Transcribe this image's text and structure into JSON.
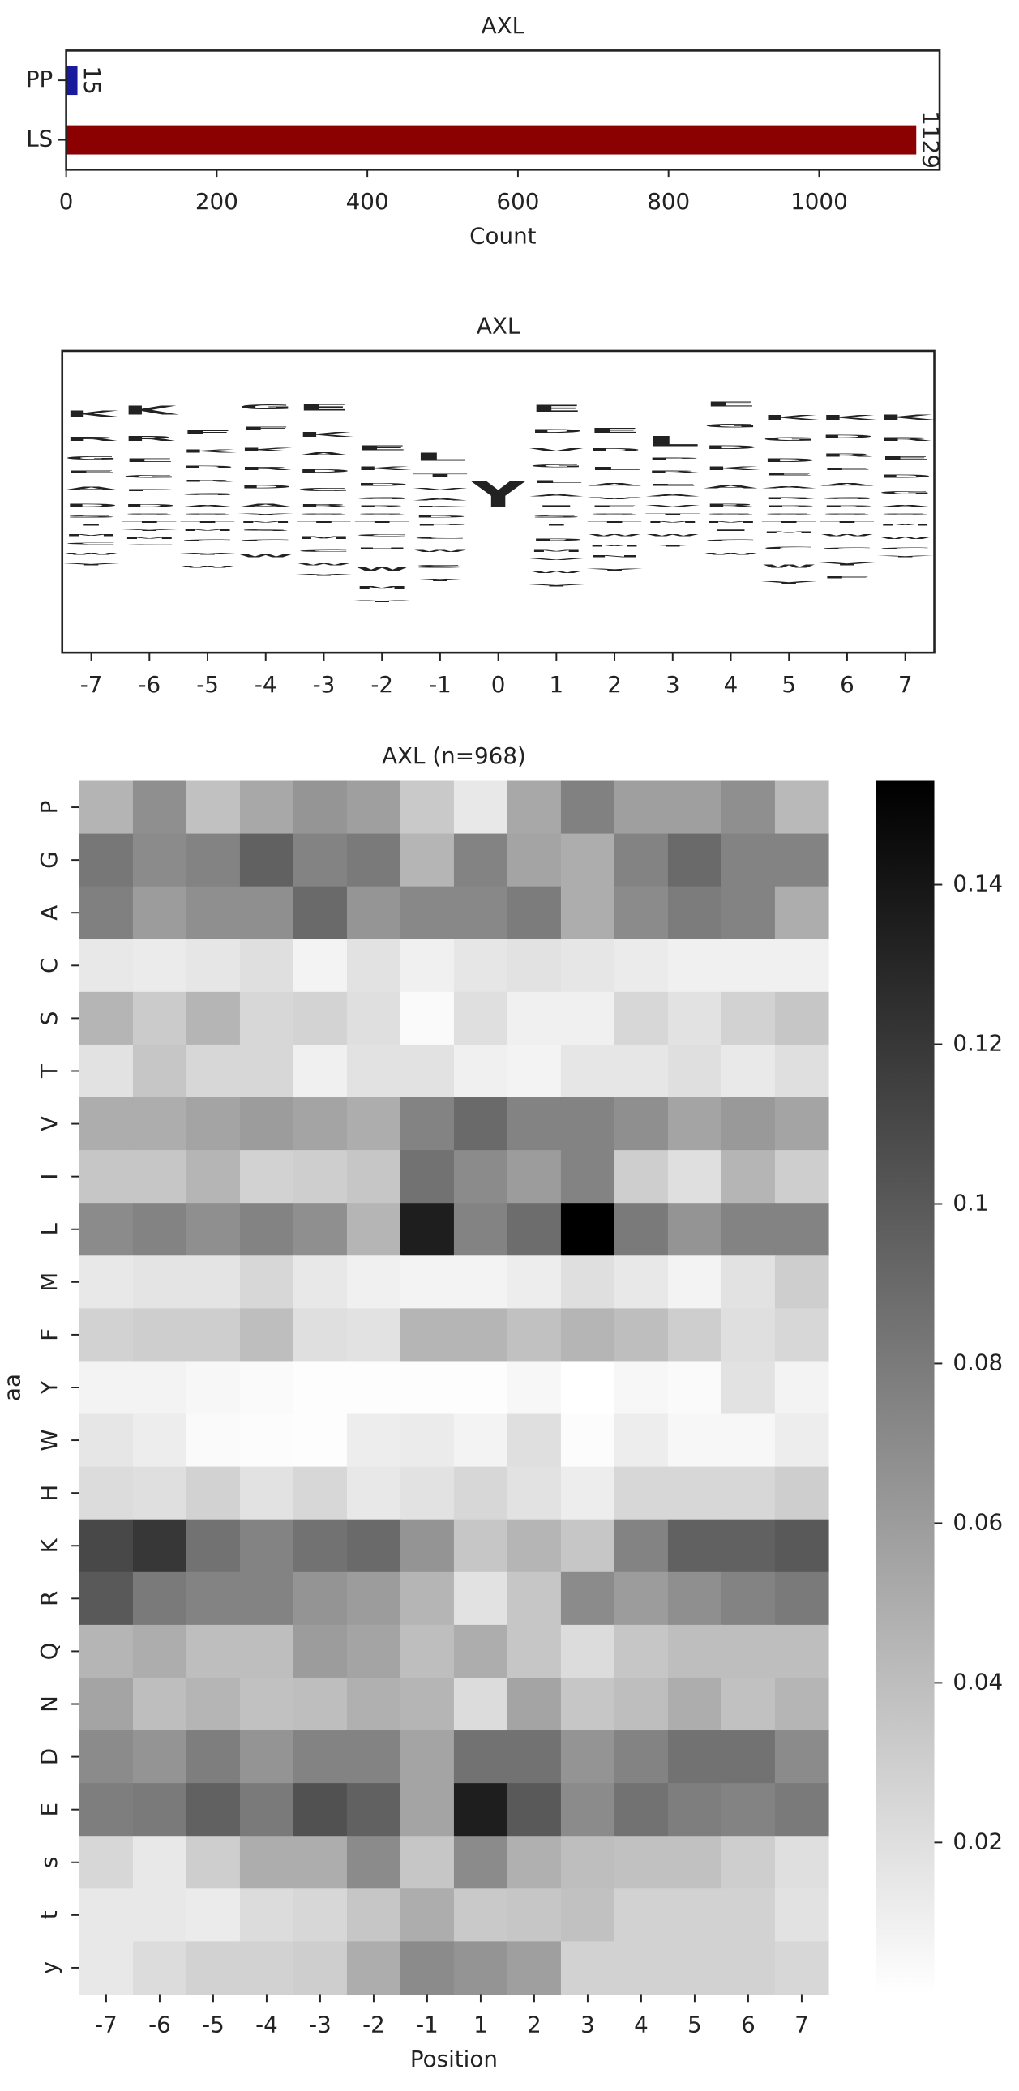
{
  "chart_data": [
    {
      "type": "barh",
      "title": "AXL",
      "categories": [
        "PP",
        "LS"
      ],
      "values": [
        15,
        1129
      ],
      "colors": [
        "#1a1a9c",
        "#8b0000"
      ],
      "xlim": [
        0,
        1160
      ],
      "xticks": [
        0,
        200,
        400,
        600,
        800,
        1000
      ],
      "xlabel": "Count"
    },
    {
      "type": "logo",
      "title": "AXL",
      "xlim": [
        -7.5,
        7.5
      ],
      "xticks": [
        -7,
        -6,
        -5,
        -4,
        -3,
        -2,
        -1,
        0,
        1,
        2,
        3,
        4,
        5,
        6,
        7
      ],
      "ylim": [
        -1.1,
        1.18
      ],
      "colors": {
        "K": "#0000ff",
        "R": "#0000ff",
        "H": "#0000ff",
        "D": "#dc143c",
        "E": "#dc143c",
        "G": "#008000",
        "A": "#008000",
        "S": "#800080",
        "T": "#800080",
        "Q": "#9932cc",
        "N": "#9932cc",
        "C": "#daa520",
        "M": "#daa520",
        "W": "#daa520",
        "L": "#daa520",
        "V": "#daa520",
        "I": "#daa520",
        "F": "#daa520",
        "P": "#000000",
        "Y": "#8b4513"
      },
      "stacks": [
        {
          "x": -7,
          "letters": [
            "K",
            "R",
            "G",
            "E",
            "A",
            "D",
            "S",
            "T",
            "M",
            "C",
            "W",
            "Y"
          ],
          "values": [
            0.28,
            0.18,
            0.14,
            0.1,
            0.13,
            0.13,
            -0.08,
            -0.06,
            -0.08,
            -0.06,
            -0.08,
            -0.08
          ]
        },
        {
          "x": -6,
          "letters": [
            "K",
            "R",
            "E",
            "G",
            "P",
            "D",
            "S",
            "T",
            "Y",
            "M",
            "C"
          ],
          "values": [
            0.4,
            0.2,
            0.16,
            0.12,
            0.1,
            0.12,
            -0.06,
            -0.06,
            -0.06,
            -0.06,
            -0.05
          ]
        },
        {
          "x": -5,
          "letters": [
            "E",
            "K",
            "D",
            "R",
            "G",
            "A",
            "S",
            "T",
            "M",
            "C",
            "Y",
            "W"
          ],
          "values": [
            0.18,
            0.14,
            0.12,
            0.1,
            0.1,
            0.09,
            -0.06,
            -0.06,
            -0.06,
            -0.08,
            -0.1,
            -0.1
          ]
        },
        {
          "x": -4,
          "letters": [
            "G",
            "E",
            "K",
            "R",
            "D",
            "A",
            "Y",
            "M",
            "S",
            "C",
            "W"
          ],
          "values": [
            0.2,
            0.16,
            0.16,
            0.14,
            0.14,
            0.14,
            -0.06,
            -0.06,
            -0.06,
            -0.08,
            -0.12
          ]
        },
        {
          "x": -3,
          "letters": [
            "E",
            "K",
            "A",
            "D",
            "G",
            "R",
            "S",
            "T",
            "M",
            "C",
            "W",
            "Y"
          ],
          "values": [
            0.3,
            0.2,
            0.14,
            0.13,
            0.14,
            0.12,
            -0.06,
            -0.06,
            -0.12,
            -0.1,
            -0.1,
            -0.08
          ]
        },
        {
          "x": -2,
          "letters": [
            "E",
            "K",
            "D",
            "G",
            "R",
            "S",
            "T",
            "C",
            "H",
            "W",
            "M",
            "Y"
          ],
          "values": [
            0.2,
            0.15,
            0.12,
            0.1,
            0.06,
            -0.06,
            -0.06,
            -0.1,
            -0.1,
            -0.16,
            -0.14,
            -0.1
          ]
        },
        {
          "x": -1,
          "letters": [
            "L",
            "T",
            "V",
            "A",
            "K",
            "D",
            "P",
            "C",
            "W",
            "S",
            "Y"
          ],
          "values": [
            0.35,
            0.12,
            0.1,
            0.08,
            0.05,
            -0.08,
            -0.06,
            -0.1,
            -0.1,
            -0.12,
            -0.1
          ]
        },
        {
          "x": 0,
          "letters": [
            "Y"
          ],
          "values": [
            1.18
          ]
        },
        {
          "x": 1,
          "letters": [
            "E",
            "D",
            "V",
            "G",
            "L",
            "A",
            "I",
            "S",
            "T",
            "P",
            "M",
            "V",
            "W",
            "Y"
          ],
          "values": [
            0.3,
            0.16,
            0.14,
            0.12,
            0.12,
            0.1,
            0.08,
            -0.08,
            -0.06,
            -0.12,
            -0.08,
            -0.06,
            -0.1,
            -0.1
          ]
        },
        {
          "x": 2,
          "letters": [
            "E",
            "D",
            "L",
            "A",
            "V",
            "F",
            "S",
            "T",
            "W",
            "M",
            "N",
            "Y"
          ],
          "values": [
            0.2,
            0.14,
            0.14,
            0.12,
            0.1,
            0.06,
            -0.06,
            -0.06,
            -0.1,
            -0.08,
            -0.08,
            -0.1
          ]
        },
        {
          "x": 3,
          "letters": [
            "L",
            "P",
            "R",
            "E",
            "A",
            "V",
            "T",
            "M",
            "W",
            "Y"
          ],
          "values": [
            0.44,
            0.1,
            0.1,
            0.1,
            0.08,
            0.08,
            -0.06,
            -0.06,
            -0.1,
            -0.08
          ]
        },
        {
          "x": 4,
          "letters": [
            "E",
            "G",
            "D",
            "K",
            "A",
            "R",
            "S",
            "M",
            "I",
            "C",
            "W"
          ],
          "values": [
            0.2,
            0.16,
            0.16,
            0.16,
            0.14,
            0.14,
            -0.06,
            -0.06,
            -0.06,
            -0.08,
            -0.1
          ]
        },
        {
          "x": 5,
          "letters": [
            "K",
            "G",
            "D",
            "E",
            "A",
            "R",
            "P",
            "S",
            "T",
            "M",
            "C",
            "W",
            "Y"
          ],
          "values": [
            0.2,
            0.16,
            0.16,
            0.1,
            0.1,
            0.08,
            0.06,
            -0.06,
            -0.06,
            -0.08,
            -0.12,
            -0.14,
            -0.12
          ]
        },
        {
          "x": 6,
          "letters": [
            "K",
            "D",
            "R",
            "E",
            "A",
            "G",
            "P",
            "S",
            "T",
            "W",
            "C",
            "Y",
            "F"
          ],
          "values": [
            0.2,
            0.14,
            0.14,
            0.1,
            0.12,
            0.1,
            0.06,
            -0.06,
            -0.06,
            -0.1,
            -0.1,
            -0.12,
            -0.1
          ]
        },
        {
          "x": 7,
          "letters": [
            "K",
            "R",
            "E",
            "D",
            "G",
            "A",
            "S",
            "M",
            "W",
            "C",
            "Y"
          ],
          "values": [
            0.24,
            0.16,
            0.14,
            0.14,
            0.12,
            0.1,
            -0.06,
            -0.08,
            -0.1,
            -0.08,
            -0.06
          ]
        }
      ]
    },
    {
      "type": "heatmap",
      "title": "AXL (n=968)",
      "xlabel": "Position",
      "ylabel": "aa",
      "xcategories": [
        -7,
        -6,
        -5,
        -4,
        -3,
        -2,
        -1,
        1,
        2,
        3,
        4,
        5,
        6,
        7
      ],
      "ycategories": [
        "P",
        "G",
        "A",
        "C",
        "S",
        "T",
        "V",
        "I",
        "L",
        "M",
        "F",
        "Y",
        "W",
        "H",
        "K",
        "R",
        "Q",
        "N",
        "D",
        "E",
        "s",
        "t",
        "y"
      ],
      "values": [
        [
          0.046,
          0.068,
          0.038,
          0.053,
          0.064,
          0.058,
          0.033,
          0.015,
          0.053,
          0.076,
          0.058,
          0.058,
          0.068,
          0.043
        ],
        [
          0.082,
          0.07,
          0.075,
          0.095,
          0.075,
          0.08,
          0.045,
          0.075,
          0.055,
          0.05,
          0.075,
          0.09,
          0.075,
          0.075
        ],
        [
          0.077,
          0.06,
          0.068,
          0.068,
          0.09,
          0.064,
          0.072,
          0.072,
          0.079,
          0.05,
          0.07,
          0.079,
          0.075,
          0.05
        ],
        [
          0.015,
          0.013,
          0.016,
          0.02,
          0.008,
          0.018,
          0.01,
          0.016,
          0.018,
          0.016,
          0.013,
          0.01,
          0.01,
          0.01
        ],
        [
          0.045,
          0.032,
          0.045,
          0.025,
          0.027,
          0.02,
          0.004,
          0.02,
          0.01,
          0.01,
          0.025,
          0.018,
          0.028,
          0.035
        ],
        [
          0.018,
          0.035,
          0.025,
          0.025,
          0.01,
          0.018,
          0.018,
          0.01,
          0.008,
          0.016,
          0.016,
          0.02,
          0.014,
          0.02
        ],
        [
          0.05,
          0.05,
          0.055,
          0.06,
          0.055,
          0.05,
          0.075,
          0.09,
          0.075,
          0.075,
          0.068,
          0.055,
          0.062,
          0.055
        ],
        [
          0.035,
          0.035,
          0.045,
          0.028,
          0.03,
          0.035,
          0.085,
          0.07,
          0.06,
          0.075,
          0.03,
          0.02,
          0.045,
          0.03
        ],
        [
          0.07,
          0.075,
          0.068,
          0.075,
          0.068,
          0.045,
          0.135,
          0.075,
          0.088,
          0.153,
          0.08,
          0.065,
          0.075,
          0.075
        ],
        [
          0.015,
          0.017,
          0.017,
          0.025,
          0.015,
          0.01,
          0.008,
          0.008,
          0.012,
          0.02,
          0.015,
          0.008,
          0.018,
          0.03
        ],
        [
          0.028,
          0.03,
          0.03,
          0.04,
          0.02,
          0.018,
          0.045,
          0.045,
          0.038,
          0.045,
          0.04,
          0.03,
          0.02,
          0.025
        ],
        [
          0.008,
          0.008,
          0.006,
          0.004,
          0.002,
          0.002,
          0.002,
          0.002,
          0.006,
          0.001,
          0.006,
          0.004,
          0.018,
          0.008
        ],
        [
          0.016,
          0.012,
          0.004,
          0.003,
          0.002,
          0.012,
          0.013,
          0.008,
          0.02,
          0.003,
          0.012,
          0.006,
          0.006,
          0.012
        ],
        [
          0.022,
          0.02,
          0.028,
          0.018,
          0.025,
          0.015,
          0.018,
          0.025,
          0.018,
          0.012,
          0.025,
          0.025,
          0.025,
          0.03
        ],
        [
          0.11,
          0.12,
          0.085,
          0.075,
          0.085,
          0.09,
          0.065,
          0.035,
          0.045,
          0.035,
          0.075,
          0.095,
          0.095,
          0.1
        ],
        [
          0.1,
          0.08,
          0.075,
          0.075,
          0.065,
          0.06,
          0.045,
          0.018,
          0.035,
          0.07,
          0.06,
          0.068,
          0.075,
          0.08
        ],
        [
          0.045,
          0.05,
          0.04,
          0.04,
          0.06,
          0.055,
          0.04,
          0.05,
          0.035,
          0.022,
          0.035,
          0.04,
          0.04,
          0.04
        ],
        [
          0.055,
          0.04,
          0.045,
          0.038,
          0.04,
          0.048,
          0.045,
          0.022,
          0.055,
          0.035,
          0.04,
          0.05,
          0.038,
          0.045
        ],
        [
          0.07,
          0.065,
          0.078,
          0.065,
          0.075,
          0.075,
          0.055,
          0.085,
          0.085,
          0.065,
          0.075,
          0.085,
          0.085,
          0.07
        ],
        [
          0.078,
          0.08,
          0.095,
          0.08,
          0.105,
          0.095,
          0.055,
          0.135,
          0.1,
          0.07,
          0.085,
          0.078,
          0.075,
          0.08
        ],
        [
          0.025,
          0.015,
          0.03,
          0.05,
          0.05,
          0.07,
          0.035,
          0.07,
          0.048,
          0.04,
          0.038,
          0.038,
          0.03,
          0.02
        ],
        [
          0.015,
          0.015,
          0.013,
          0.022,
          0.025,
          0.035,
          0.05,
          0.033,
          0.035,
          0.038,
          0.028,
          0.028,
          0.028,
          0.018
        ],
        [
          0.015,
          0.022,
          0.028,
          0.028,
          0.03,
          0.05,
          0.07,
          0.065,
          0.058,
          0.028,
          0.028,
          0.028,
          0.028,
          0.025
        ]
      ],
      "vlim": [
        0.001,
        0.153
      ],
      "colorbar_ticks": [
        0.02,
        0.04,
        0.06,
        0.08,
        0.1,
        0.12,
        0.14
      ],
      "cmap": [
        "#ffffff",
        "#000000"
      ]
    }
  ]
}
